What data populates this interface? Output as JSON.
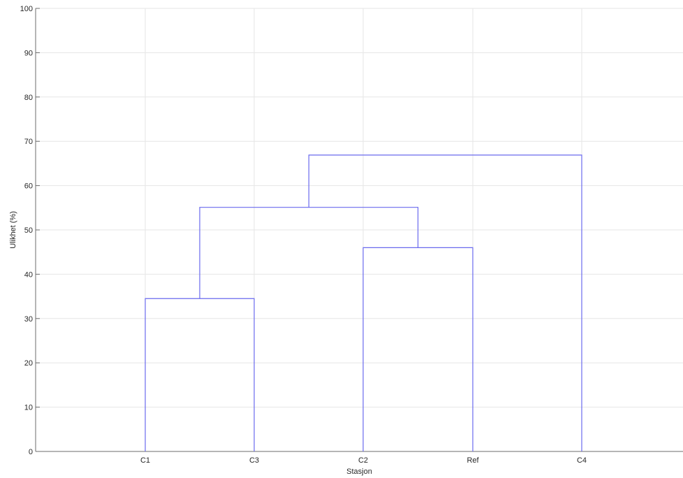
{
  "chart_data": {
    "type": "dendrogram",
    "xlabel": "Stasjon",
    "ylabel": "Ulikhet (%)",
    "ylim": [
      0,
      100
    ],
    "yticks": [
      0,
      10,
      20,
      30,
      40,
      50,
      60,
      70,
      80,
      90,
      100
    ],
    "grid": true,
    "leaves": [
      "C1",
      "C3",
      "C2",
      "Ref",
      "C4"
    ],
    "merges": [
      {
        "left": "C1",
        "right": "C3",
        "height": 34.5
      },
      {
        "left": "C2",
        "right": "Ref",
        "height": 46.0
      },
      {
        "left": "C1+C3",
        "right": "C2+Ref",
        "height": 55.1
      },
      {
        "left": "C1+C3+C2+Ref",
        "right": "C4",
        "height": 66.9
      }
    ],
    "colors": {
      "link": "#6a6aee",
      "grid": "#e6e6e6",
      "axis": "#6b6b6b"
    }
  }
}
